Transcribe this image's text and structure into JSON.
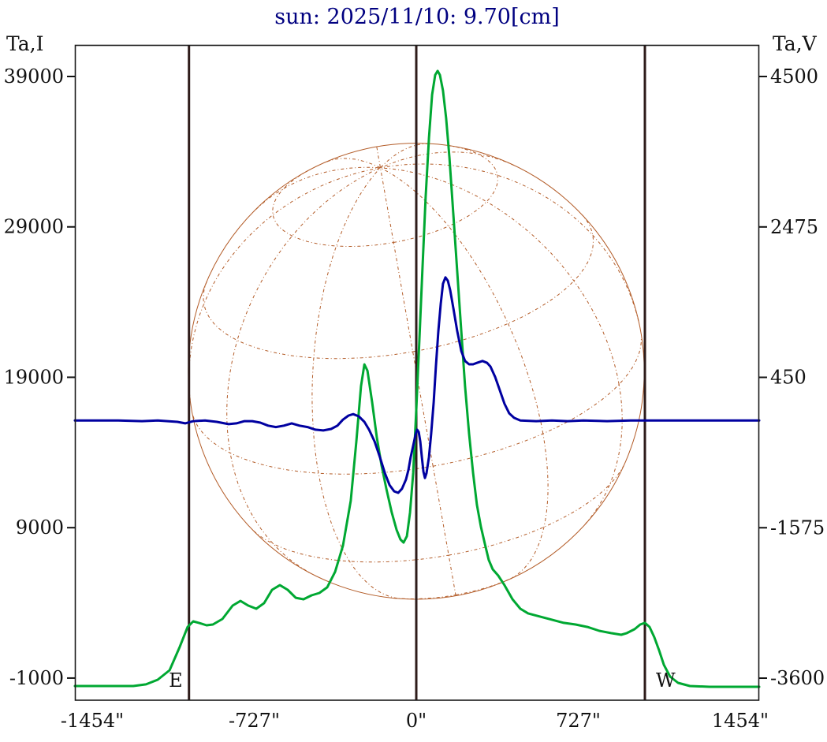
{
  "chart_data": {
    "type": "line",
    "title": "sun: 2025/11/10: 9.70[cm]",
    "title_color": "#000080",
    "axes": {
      "left": {
        "label": "Ta,I",
        "ticks": [
          39000,
          29000,
          19000,
          9000,
          -1000
        ],
        "range": [
          -2472,
          41097
        ]
      },
      "right": {
        "label": "Ta,V",
        "ticks": [
          4500,
          2475,
          450,
          -1575,
          -3600
        ],
        "range": [
          -3897,
          4925
        ]
      },
      "bottom": {
        "ticks": [
          -1454,
          -727,
          0,
          727,
          1454
        ],
        "suffix": "\"",
        "range": [
          -1532,
          1539
        ]
      }
    },
    "grid": false,
    "legend": "none",
    "limb_markers": {
      "east": {
        "label": "E",
        "x": -1020
      },
      "center": {
        "x": 0
      },
      "west": {
        "label": "W",
        "x": 1026
      },
      "color": "#2e1c1a"
    },
    "solar_disk": {
      "center_x": 0,
      "center_ta_i": 19400,
      "radius_arcsec": 1023,
      "grid_step_deg": 30,
      "tilt_deg": 10,
      "b0_deg": 25,
      "color": "#b35c28"
    },
    "series": [
      {
        "name": "Ta,I",
        "axis": "left",
        "color": "#00A832",
        "points": [
          [
            -1532,
            -1530
          ],
          [
            -1270,
            -1530
          ],
          [
            -1213,
            -1420
          ],
          [
            -1160,
            -1110
          ],
          [
            -1107,
            -480
          ],
          [
            -1061,
            1090
          ],
          [
            -1026,
            2400
          ],
          [
            -1001,
            2770
          ],
          [
            -976,
            2670
          ],
          [
            -941,
            2510
          ],
          [
            -913,
            2560
          ],
          [
            -870,
            2930
          ],
          [
            -824,
            3820
          ],
          [
            -789,
            4130
          ],
          [
            -754,
            3820
          ],
          [
            -718,
            3610
          ],
          [
            -683,
            3980
          ],
          [
            -647,
            4870
          ],
          [
            -612,
            5180
          ],
          [
            -577,
            4870
          ],
          [
            -541,
            4340
          ],
          [
            -506,
            4240
          ],
          [
            -470,
            4500
          ],
          [
            -435,
            4660
          ],
          [
            -400,
            5030
          ],
          [
            -364,
            6070
          ],
          [
            -329,
            7800
          ],
          [
            -294,
            10790
          ],
          [
            -269,
            14730
          ],
          [
            -248,
            18400
          ],
          [
            -233,
            19860
          ],
          [
            -219,
            19440
          ],
          [
            -198,
            17350
          ],
          [
            -177,
            14990
          ],
          [
            -156,
            13150
          ],
          [
            -134,
            11580
          ],
          [
            -110,
            10010
          ],
          [
            -88,
            8850
          ],
          [
            -71,
            8220
          ],
          [
            -57,
            8010
          ],
          [
            -42,
            8430
          ],
          [
            -28,
            10010
          ],
          [
            -14,
            12630
          ],
          [
            0,
            16820
          ],
          [
            14,
            21540
          ],
          [
            28,
            26260
          ],
          [
            42,
            30980
          ],
          [
            57,
            34910
          ],
          [
            71,
            37790
          ],
          [
            85,
            39100
          ],
          [
            96,
            39370
          ],
          [
            106,
            39100
          ],
          [
            120,
            38060
          ],
          [
            134,
            36220
          ],
          [
            149,
            33600
          ],
          [
            166,
            29930
          ],
          [
            184,
            26000
          ],
          [
            202,
            22070
          ],
          [
            219,
            18400
          ],
          [
            237,
            15250
          ],
          [
            255,
            12630
          ],
          [
            272,
            10530
          ],
          [
            290,
            9060
          ],
          [
            308,
            7910
          ],
          [
            325,
            6860
          ],
          [
            343,
            6230
          ],
          [
            368,
            5810
          ],
          [
            396,
            5180
          ],
          [
            432,
            4240
          ],
          [
            467,
            3610
          ],
          [
            502,
            3300
          ],
          [
            555,
            3090
          ],
          [
            609,
            2880
          ],
          [
            662,
            2670
          ],
          [
            715,
            2560
          ],
          [
            768,
            2400
          ],
          [
            821,
            2140
          ],
          [
            874,
            1990
          ],
          [
            920,
            1880
          ],
          [
            945,
            1990
          ],
          [
            980,
            2250
          ],
          [
            1005,
            2560
          ],
          [
            1026,
            2670
          ],
          [
            1047,
            2400
          ],
          [
            1068,
            1720
          ],
          [
            1090,
            830
          ],
          [
            1111,
            -110
          ],
          [
            1139,
            -900
          ],
          [
            1175,
            -1320
          ],
          [
            1228,
            -1530
          ],
          [
            1316,
            -1580
          ],
          [
            1539,
            -1580
          ]
        ]
      },
      {
        "name": "Ta,V",
        "axis": "right",
        "color": "#0000A0",
        "points": [
          [
            -1532,
            -130
          ],
          [
            -1337,
            -130
          ],
          [
            -1231,
            -140
          ],
          [
            -1160,
            -130
          ],
          [
            -1072,
            -150
          ],
          [
            -1037,
            -170
          ],
          [
            -1001,
            -140
          ],
          [
            -948,
            -130
          ],
          [
            -895,
            -150
          ],
          [
            -842,
            -180
          ],
          [
            -807,
            -170
          ],
          [
            -771,
            -140
          ],
          [
            -736,
            -140
          ],
          [
            -700,
            -160
          ],
          [
            -665,
            -200
          ],
          [
            -630,
            -220
          ],
          [
            -594,
            -200
          ],
          [
            -559,
            -170
          ],
          [
            -524,
            -200
          ],
          [
            -488,
            -220
          ],
          [
            -453,
            -255
          ],
          [
            -417,
            -265
          ],
          [
            -382,
            -245
          ],
          [
            -354,
            -200
          ],
          [
            -329,
            -120
          ],
          [
            -304,
            -65
          ],
          [
            -283,
            -45
          ],
          [
            -258,
            -75
          ],
          [
            -233,
            -150
          ],
          [
            -212,
            -255
          ],
          [
            -187,
            -415
          ],
          [
            -163,
            -625
          ],
          [
            -141,
            -840
          ],
          [
            -120,
            -1000
          ],
          [
            -99,
            -1085
          ],
          [
            -81,
            -1105
          ],
          [
            -64,
            -1050
          ],
          [
            -46,
            -925
          ],
          [
            -35,
            -795
          ],
          [
            -25,
            -625
          ],
          [
            -14,
            -470
          ],
          [
            -4,
            -330
          ],
          [
            4,
            -255
          ],
          [
            11,
            -285
          ],
          [
            18,
            -415
          ],
          [
            25,
            -625
          ],
          [
            32,
            -820
          ],
          [
            39,
            -905
          ],
          [
            46,
            -840
          ],
          [
            57,
            -625
          ],
          [
            67,
            -310
          ],
          [
            78,
            115
          ],
          [
            88,
            595
          ],
          [
            99,
            1070
          ],
          [
            110,
            1445
          ],
          [
            120,
            1710
          ],
          [
            131,
            1795
          ],
          [
            142,
            1750
          ],
          [
            152,
            1625
          ],
          [
            166,
            1390
          ],
          [
            184,
            1070
          ],
          [
            202,
            805
          ],
          [
            219,
            670
          ],
          [
            237,
            625
          ],
          [
            255,
            625
          ],
          [
            272,
            645
          ],
          [
            297,
            670
          ],
          [
            318,
            645
          ],
          [
            333,
            595
          ],
          [
            354,
            455
          ],
          [
            375,
            275
          ],
          [
            396,
            95
          ],
          [
            417,
            -35
          ],
          [
            439,
            -95
          ],
          [
            467,
            -130
          ],
          [
            538,
            -140
          ],
          [
            609,
            -130
          ],
          [
            679,
            -140
          ],
          [
            750,
            -130
          ],
          [
            856,
            -140
          ],
          [
            962,
            -130
          ],
          [
            1139,
            -130
          ],
          [
            1539,
            -130
          ]
        ]
      }
    ]
  }
}
